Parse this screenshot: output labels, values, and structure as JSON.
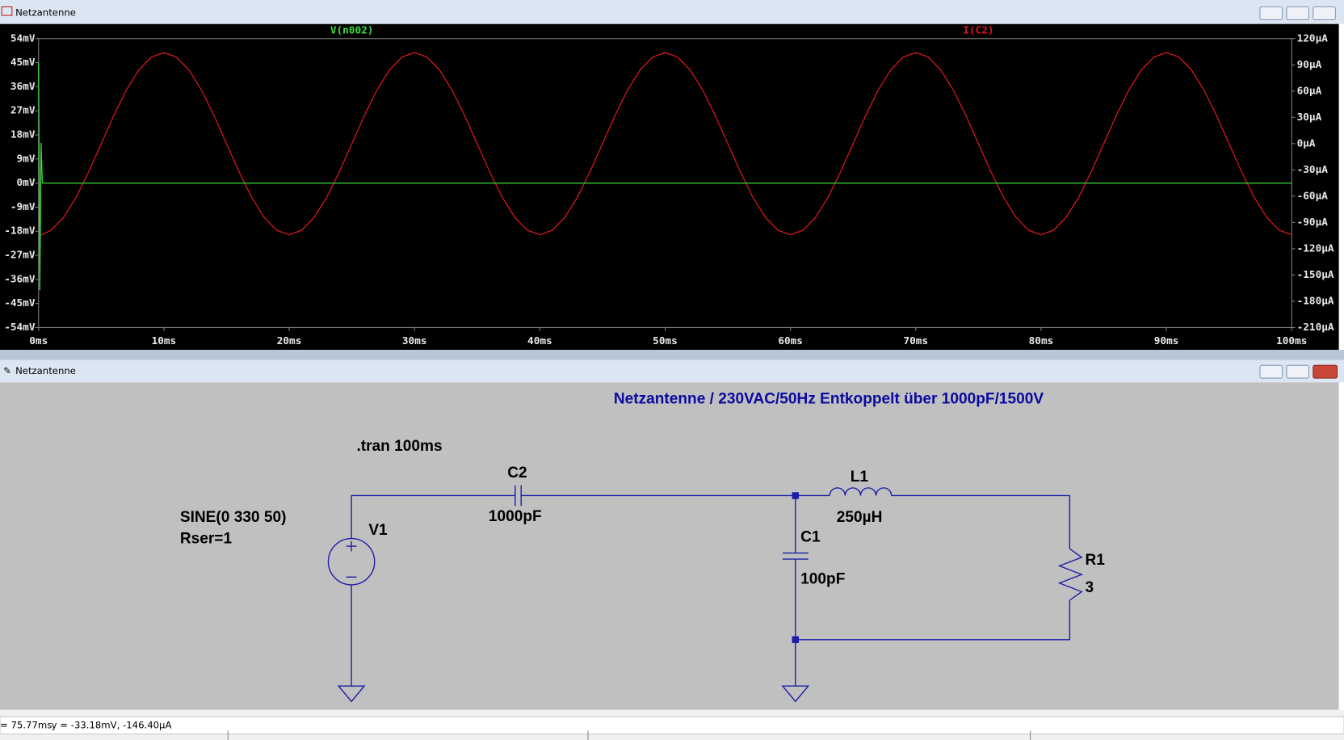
{
  "waveform_window": {
    "title": "Netzantenne"
  },
  "chart_data": {
    "type": "line",
    "x": [
      0,
      0.1,
      0.2,
      0.3,
      1,
      2,
      3,
      4,
      5,
      6,
      7,
      8,
      9,
      10,
      11,
      12,
      13,
      14,
      15,
      16,
      17,
      18,
      19,
      20,
      21,
      22,
      23,
      24,
      25,
      26,
      27,
      28,
      29,
      30,
      31,
      32,
      33,
      34,
      35,
      36,
      37,
      38,
      39,
      40,
      41,
      42,
      43,
      44,
      45,
      46,
      47,
      48,
      49,
      50,
      51,
      52,
      53,
      54,
      55,
      56,
      57,
      58,
      59,
      60,
      61,
      62,
      63,
      64,
      65,
      66,
      67,
      68,
      69,
      70,
      71,
      72,
      73,
      74,
      75,
      76,
      77,
      78,
      79,
      80,
      81,
      82,
      83,
      84,
      85,
      86,
      87,
      88,
      89,
      90,
      91,
      92,
      93,
      94,
      95,
      96,
      97,
      98,
      99,
      100
    ],
    "series": [
      {
        "name": "V(n002)",
        "color": "#3cdc3c",
        "axis": "y",
        "values": [
          45,
          -40,
          15,
          0,
          0,
          0,
          0,
          0,
          0,
          0,
          0,
          0,
          0,
          0,
          0,
          0,
          0,
          0,
          0,
          0,
          0,
          0,
          0,
          0,
          0,
          0,
          0,
          0,
          0,
          0,
          0,
          0,
          0,
          0,
          0,
          0,
          0,
          0,
          0,
          0,
          0,
          0,
          0,
          0,
          0,
          0,
          0,
          0,
          0,
          0,
          0,
          0,
          0,
          0,
          0,
          0,
          0,
          0,
          0,
          0,
          0,
          0,
          0,
          0,
          0,
          0,
          0,
          0,
          0,
          0,
          0,
          0,
          0,
          0,
          0,
          0,
          0,
          0,
          0,
          0,
          0,
          0,
          0,
          0,
          0,
          0,
          0,
          0,
          0,
          0,
          0,
          0,
          0,
          0,
          0,
          0,
          0,
          0,
          0,
          0,
          0,
          0,
          0,
          0
        ]
      },
      {
        "name": "I(C2)",
        "color": "#d81818",
        "axis": "y2",
        "values": [
          -104,
          -104,
          -103.8,
          -103.5,
          -98.9,
          -84.1,
          -61.2,
          -32.1,
          0,
          32.1,
          61.2,
          84.1,
          98.9,
          104,
          98.9,
          84.1,
          61.2,
          32.1,
          0,
          -32.1,
          -61.2,
          -84.1,
          -98.9,
          -104,
          -98.9,
          -84.1,
          -61.2,
          -32.1,
          0,
          32.1,
          61.2,
          84.1,
          98.9,
          104,
          98.9,
          84.1,
          61.2,
          32.1,
          0,
          -32.1,
          -61.2,
          -84.1,
          -98.9,
          -104,
          -98.9,
          -84.1,
          -61.2,
          -32.1,
          0,
          32.1,
          61.2,
          84.1,
          98.9,
          104,
          98.9,
          84.1,
          61.2,
          32.1,
          0,
          -32.1,
          -61.2,
          -84.1,
          -98.9,
          -104,
          -98.9,
          -84.1,
          -61.2,
          -32.1,
          0,
          32.1,
          61.2,
          84.1,
          98.9,
          104,
          98.9,
          84.1,
          61.2,
          32.1,
          0,
          -32.1,
          -61.2,
          -84.1,
          -98.9,
          -104,
          -98.9,
          -84.1,
          -61.2,
          -32.1,
          0,
          32.1,
          61.2,
          84.1,
          98.9,
          104,
          98.9,
          84.1,
          61.2,
          32.1,
          0,
          -32.1,
          -61.2,
          -84.1,
          -98.9,
          -104
        ]
      }
    ],
    "xlim": [
      0,
      100
    ],
    "xticks": [
      {
        "value": 0,
        "label": "0ms"
      },
      {
        "value": 10,
        "label": "10ms"
      },
      {
        "value": 20,
        "label": "20ms"
      },
      {
        "value": 30,
        "label": "30ms"
      },
      {
        "value": 40,
        "label": "40ms"
      },
      {
        "value": 50,
        "label": "50ms"
      },
      {
        "value": 60,
        "label": "60ms"
      },
      {
        "value": 70,
        "label": "70ms"
      },
      {
        "value": 80,
        "label": "80ms"
      },
      {
        "value": 90,
        "label": "90ms"
      },
      {
        "value": 100,
        "label": "100ms"
      }
    ],
    "ylim": [
      -54,
      54
    ],
    "yticks": [
      {
        "value": 54,
        "label": "54mV"
      },
      {
        "value": 45,
        "label": "45mV"
      },
      {
        "value": 36,
        "label": "36mV"
      },
      {
        "value": 27,
        "label": "27mV"
      },
      {
        "value": 18,
        "label": "18mV"
      },
      {
        "value": 9,
        "label": "9mV"
      },
      {
        "value": 0,
        "label": "0mV"
      },
      {
        "value": -9,
        "label": "-9mV"
      },
      {
        "value": -18,
        "label": "-18mV"
      },
      {
        "value": -27,
        "label": "-27mV"
      },
      {
        "value": -36,
        "label": "-36mV"
      },
      {
        "value": -45,
        "label": "-45mV"
      },
      {
        "value": -54,
        "label": "-54mV"
      }
    ],
    "y2lim": [
      -210,
      120
    ],
    "y2ticks": [
      {
        "value": 120,
        "label": "120µA"
      },
      {
        "value": 90,
        "label": "90µA"
      },
      {
        "value": 60,
        "label": "60µA"
      },
      {
        "value": 30,
        "label": "30µA"
      },
      {
        "value": 0,
        "label": "0µA"
      },
      {
        "value": -30,
        "label": "-30µA"
      },
      {
        "value": -60,
        "label": "-60µA"
      },
      {
        "value": -90,
        "label": "-90µA"
      },
      {
        "value": -120,
        "label": "-120µA"
      },
      {
        "value": -150,
        "label": "-150µA"
      },
      {
        "value": -180,
        "label": "-180µA"
      },
      {
        "value": -210,
        "label": "-210µA"
      }
    ],
    "grid": false
  },
  "schematic_window": {
    "title": "Netzantenne",
    "comment": "Netzantenne / 230VAC/50Hz Entkoppelt über 1000pF/1500V",
    "directive": ".tran 100ms",
    "components": {
      "V1": {
        "name": "V1",
        "value": "SINE(0 330 50)",
        "extra": "Rser=1"
      },
      "C2": {
        "name": "C2",
        "value": "1000pF"
      },
      "L1": {
        "name": "L1",
        "value": "250µH"
      },
      "C1": {
        "name": "C1",
        "value": "100pF"
      },
      "R1": {
        "name": "R1",
        "value": "3"
      }
    }
  },
  "status_bar": {
    "x": "= 75.77ms",
    "y": "y = -33.18mV, -146.40µA"
  }
}
